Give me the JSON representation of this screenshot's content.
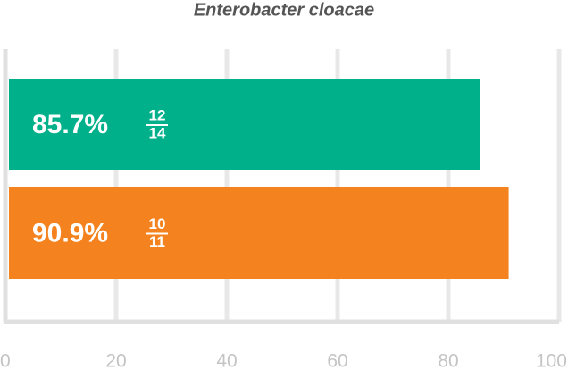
{
  "chart_data": {
    "type": "bar",
    "orientation": "horizontal",
    "title": "Enterobacter cloacae",
    "values": [
      85.7,
      90.9
    ],
    "value_labels": [
      "85.7%",
      "90.9%"
    ],
    "fractions": [
      {
        "numerator": 12,
        "denominator": 14
      },
      {
        "numerator": 10,
        "denominator": 11
      }
    ],
    "colors": [
      "#00b08b",
      "#f4831f"
    ],
    "xlim": [
      0,
      100
    ],
    "xticks": [
      0,
      20,
      40,
      60,
      80,
      100
    ],
    "grid": true
  }
}
